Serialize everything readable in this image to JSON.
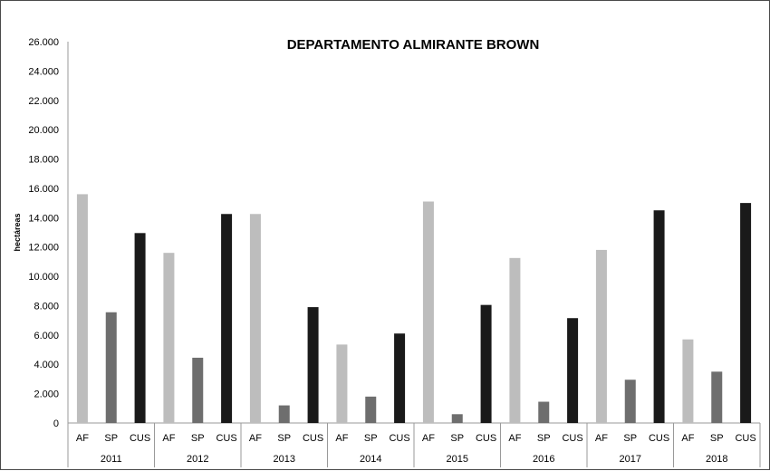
{
  "chart_data": {
    "type": "bar",
    "title": "DEPARTAMENTO ALMIRANTE BROWN",
    "ylabel": "hectáreas",
    "xlabel": "",
    "ylim": [
      0,
      26000
    ],
    "ytick_values": [
      0,
      2000,
      4000,
      6000,
      8000,
      10000,
      12000,
      14000,
      16000,
      18000,
      20000,
      22000,
      24000,
      26000
    ],
    "ytick_labels": [
      "0",
      "2.000",
      "4.000",
      "6.000",
      "8.000",
      "10.000",
      "12.000",
      "14.000",
      "16.000",
      "18.000",
      "20.000",
      "22.000",
      "24.000",
      "26.000"
    ],
    "grid": false,
    "legend": "none",
    "groups": [
      "2011",
      "2012",
      "2013",
      "2014",
      "2015",
      "2016",
      "2017",
      "2018"
    ],
    "categories": [
      "AF",
      "SP",
      "CUS"
    ],
    "category_colors": [
      "#bdbdbd",
      "#6e6e6e",
      "#1a1a1a"
    ],
    "values": [
      [
        15600,
        7550,
        12950
      ],
      [
        11600,
        4450,
        14250
      ],
      [
        14250,
        1200,
        7900
      ],
      [
        5350,
        1800,
        6100
      ],
      [
        15100,
        600,
        8050
      ],
      [
        11250,
        1450,
        7150
      ],
      [
        11800,
        2950,
        14500
      ],
      [
        5700,
        3500,
        15000
      ]
    ]
  }
}
